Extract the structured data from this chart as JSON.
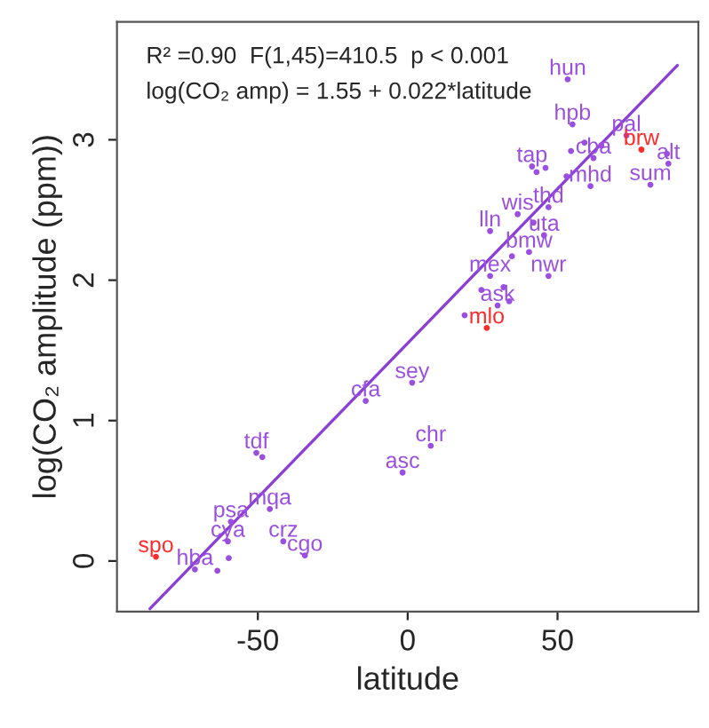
{
  "chart_data": {
    "type": "scatter",
    "xlabel": "latitude",
    "ylabel": "log(CO₂ amplitude (ppm))",
    "xlim": [
      -97,
      97
    ],
    "ylim": [
      -0.36,
      3.84
    ],
    "xticks": [
      -50,
      0,
      50
    ],
    "yticks": [
      0,
      1,
      2,
      3
    ],
    "grid": false,
    "legend": false,
    "annotations": [
      "R² =0.90  F(1,45)=410.5  p < 0.001",
      "log(CO₂ amp) = 1.55 + 0.022*latitude"
    ],
    "series": [
      {
        "color": "#9b4fe0",
        "marker": "circle",
        "x": [
          53.4,
          55,
          73,
          54.5,
          59,
          64.6,
          62,
          86.5,
          87,
          81,
          41.5,
          46,
          43,
          53,
          61,
          47,
          36.7,
          42,
          45.5,
          27.5,
          40.5,
          34.8,
          47,
          27.5,
          24.6,
          32,
          30,
          33.9,
          19,
          1.5,
          -14,
          7.7,
          -1.7,
          -50.5,
          -48.5,
          -46,
          -59,
          -60,
          -41.5,
          -34.3,
          -59.7,
          -71,
          -63.5
        ],
        "values": [
          3.43,
          3.11,
          3.03,
          2.92,
          2.98,
          2.96,
          2.87,
          2.9,
          2.83,
          2.68,
          2.81,
          2.8,
          2.77,
          2.74,
          2.67,
          2.52,
          2.47,
          2.41,
          2.32,
          2.35,
          2.2,
          2.17,
          2.03,
          2.03,
          1.93,
          1.95,
          1.82,
          1.85,
          1.75,
          1.27,
          1.14,
          0.82,
          0.63,
          0.77,
          0.74,
          0.37,
          0.28,
          0.14,
          0.14,
          0.04,
          0.02,
          -0.06,
          -0.07
        ],
        "value_labels": [
          "hun",
          "hpb",
          "pal",
          null,
          null,
          null,
          "cba",
          null,
          "alt",
          "sum",
          "tap",
          null,
          null,
          null,
          "mhd",
          "thd",
          "wis",
          null,
          "uta",
          "lln",
          "bmw",
          null,
          "nwr",
          "mex",
          null,
          null,
          "ask",
          null,
          null,
          "sey",
          "cfa",
          "chr",
          "asc",
          "tdf",
          null,
          "mqa",
          "psa",
          "cya",
          "crz",
          "cgo",
          null,
          "hba",
          null
        ]
      },
      {
        "color": "#ff2a2a",
        "marker": "circle",
        "x": [
          78,
          26.4,
          -84
        ],
        "values": [
          2.93,
          1.66,
          0.03
        ],
        "value_labels": [
          "brw",
          "mlo",
          "spo"
        ]
      },
      {
        "type": "line",
        "color": "#8a3fd6",
        "marker": "none",
        "x": [
          -86,
          90
        ],
        "values": [
          -0.34,
          3.53
        ]
      }
    ]
  }
}
